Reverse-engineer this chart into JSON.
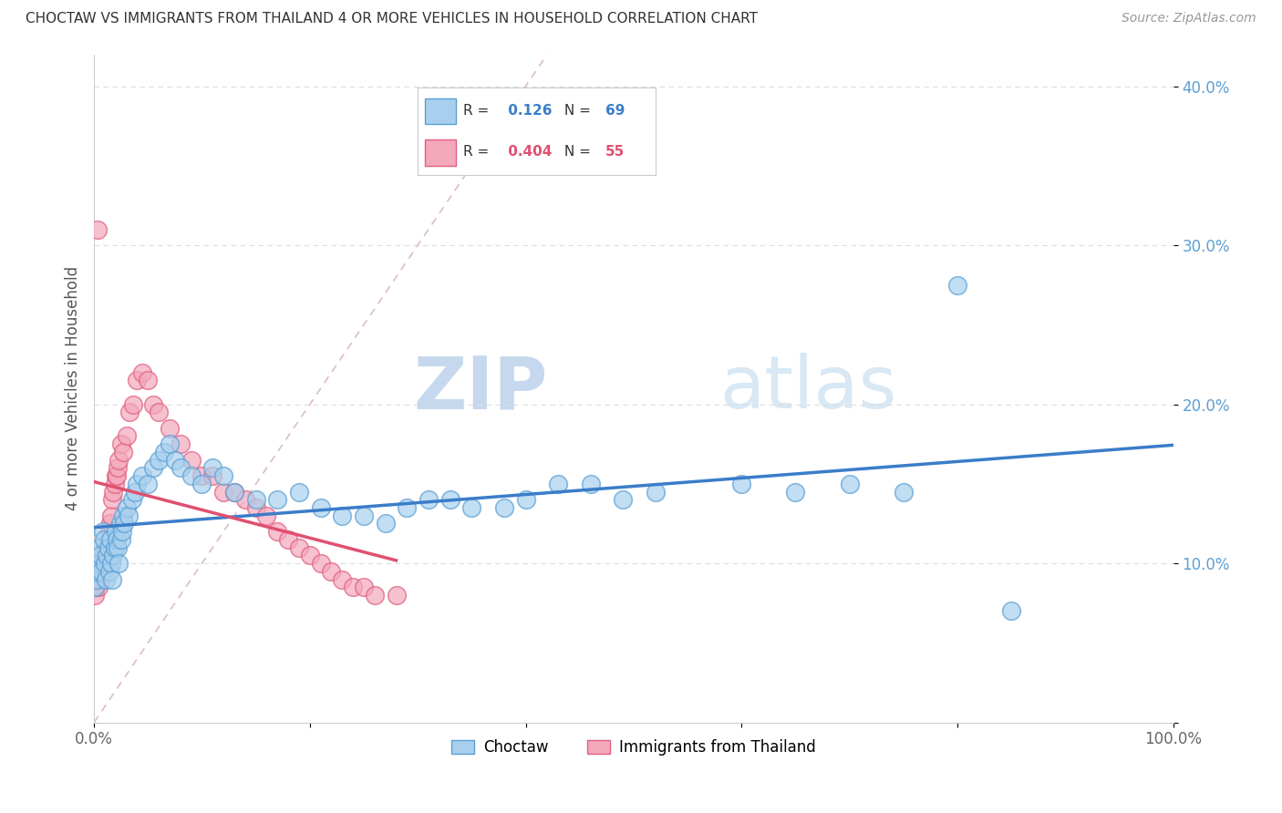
{
  "title": "CHOCTAW VS IMMIGRANTS FROM THAILAND 4 OR MORE VEHICLES IN HOUSEHOLD CORRELATION CHART",
  "source": "Source: ZipAtlas.com",
  "ylabel": "4 or more Vehicles in Household",
  "xlim": [
    0.0,
    1.0
  ],
  "ylim": [
    0.0,
    0.42
  ],
  "choctaw_color": "#A8D0EE",
  "thailand_color": "#F4A8BC",
  "choctaw_edge": "#5B9FD4",
  "thailand_edge": "#E06080",
  "choctaw_line_color": "#3A7DC9",
  "thailand_line_color": "#E05070",
  "choctaw_R": 0.126,
  "choctaw_N": 69,
  "thailand_R": 0.404,
  "thailand_N": 55,
  "legend_label_1": "Choctaw",
  "legend_label_2": "Immigrants from Thailand",
  "watermark_zip": "ZIP",
  "watermark_atlas": "atlas",
  "background_color": "#FFFFFF",
  "choctaw_scatter_x": [
    0.001,
    0.002,
    0.003,
    0.004,
    0.005,
    0.006,
    0.007,
    0.008,
    0.009,
    0.01,
    0.011,
    0.012,
    0.013,
    0.014,
    0.015,
    0.016,
    0.017,
    0.018,
    0.019,
    0.02,
    0.021,
    0.022,
    0.023,
    0.024,
    0.025,
    0.026,
    0.027,
    0.028,
    0.03,
    0.032,
    0.035,
    0.038,
    0.04,
    0.045,
    0.05,
    0.055,
    0.06,
    0.065,
    0.07,
    0.075,
    0.08,
    0.09,
    0.1,
    0.11,
    0.12,
    0.13,
    0.15,
    0.17,
    0.19,
    0.21,
    0.23,
    0.25,
    0.27,
    0.29,
    0.31,
    0.33,
    0.35,
    0.38,
    0.4,
    0.43,
    0.46,
    0.49,
    0.52,
    0.6,
    0.65,
    0.7,
    0.75,
    0.8,
    0.85
  ],
  "choctaw_scatter_y": [
    0.085,
    0.09,
    0.095,
    0.1,
    0.11,
    0.105,
    0.095,
    0.12,
    0.115,
    0.1,
    0.09,
    0.105,
    0.11,
    0.095,
    0.115,
    0.1,
    0.09,
    0.105,
    0.11,
    0.12,
    0.115,
    0.11,
    0.1,
    0.125,
    0.115,
    0.12,
    0.13,
    0.125,
    0.135,
    0.13,
    0.14,
    0.145,
    0.15,
    0.155,
    0.15,
    0.16,
    0.165,
    0.17,
    0.175,
    0.165,
    0.16,
    0.155,
    0.15,
    0.16,
    0.155,
    0.145,
    0.14,
    0.14,
    0.145,
    0.135,
    0.13,
    0.13,
    0.125,
    0.135,
    0.14,
    0.14,
    0.135,
    0.135,
    0.14,
    0.15,
    0.15,
    0.14,
    0.145,
    0.15,
    0.145,
    0.15,
    0.145,
    0.275,
    0.07
  ],
  "thailand_scatter_x": [
    0.001,
    0.002,
    0.003,
    0.004,
    0.005,
    0.006,
    0.007,
    0.008,
    0.009,
    0.01,
    0.011,
    0.012,
    0.013,
    0.014,
    0.015,
    0.016,
    0.017,
    0.018,
    0.019,
    0.02,
    0.021,
    0.022,
    0.023,
    0.025,
    0.027,
    0.03,
    0.033,
    0.036,
    0.04,
    0.045,
    0.05,
    0.055,
    0.06,
    0.07,
    0.08,
    0.09,
    0.1,
    0.11,
    0.12,
    0.13,
    0.14,
    0.15,
    0.16,
    0.17,
    0.18,
    0.19,
    0.2,
    0.21,
    0.22,
    0.23,
    0.24,
    0.25,
    0.26,
    0.28,
    0.003
  ],
  "thailand_scatter_y": [
    0.08,
    0.085,
    0.09,
    0.085,
    0.095,
    0.09,
    0.1,
    0.095,
    0.105,
    0.1,
    0.11,
    0.105,
    0.115,
    0.12,
    0.125,
    0.13,
    0.14,
    0.145,
    0.15,
    0.155,
    0.155,
    0.16,
    0.165,
    0.175,
    0.17,
    0.18,
    0.195,
    0.2,
    0.215,
    0.22,
    0.215,
    0.2,
    0.195,
    0.185,
    0.175,
    0.165,
    0.155,
    0.155,
    0.145,
    0.145,
    0.14,
    0.135,
    0.13,
    0.12,
    0.115,
    0.11,
    0.105,
    0.1,
    0.095,
    0.09,
    0.085,
    0.085,
    0.08,
    0.08,
    0.31
  ]
}
